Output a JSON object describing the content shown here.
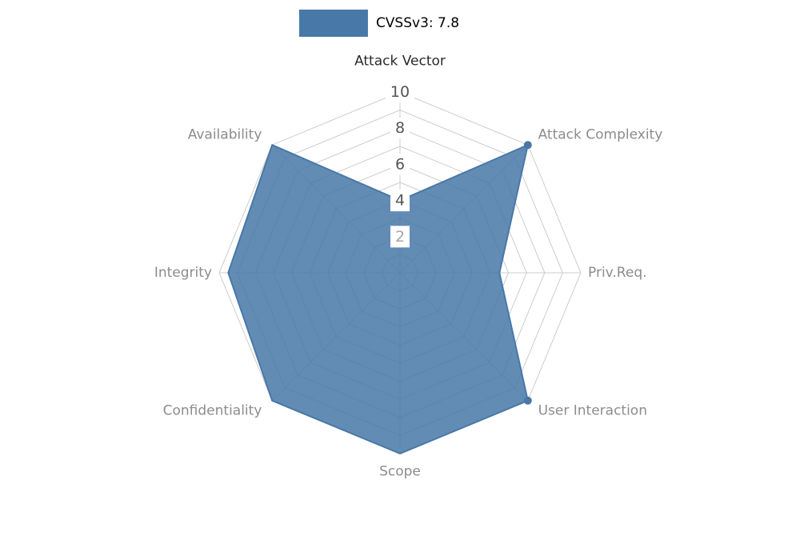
{
  "chart_data": {
    "type": "radar",
    "title": "CVSSv3: 7.8",
    "legend": {
      "label": "CVSSv3: 7.8",
      "swatch_color": "#4878a8",
      "position": "top-center"
    },
    "categories": [
      "Attack Vector",
      "Attack Complexity",
      "Priv.Req.",
      "User Interaction",
      "Scope",
      "Confidentiality",
      "Integrity",
      "Availability"
    ],
    "series": [
      {
        "name": "CVSSv3: 7.8",
        "values": [
          4,
          10,
          5.5,
          10,
          10,
          10,
          9.5,
          10
        ],
        "fill_color": "#4878a8",
        "fill_opacity": 0.85,
        "stroke_color": "#4878a8",
        "marker_axes": [
          "Attack Complexity",
          "User Interaction"
        ]
      }
    ],
    "radial_axis": {
      "ticks": [
        2,
        4,
        6,
        8,
        10
      ],
      "max": 10,
      "grid_rings": 10,
      "tick_color": "#555555",
      "tick_light_color": "#a6a6a6",
      "tick_box_color": "#ffffff"
    },
    "grid": {
      "on": true,
      "color": "#cccccc",
      "shape": "polygon"
    },
    "axis_label_colors": {
      "highlight_axis": "Attack Vector",
      "highlight": "#2b2b2b",
      "default": "#8c8c8c"
    }
  }
}
